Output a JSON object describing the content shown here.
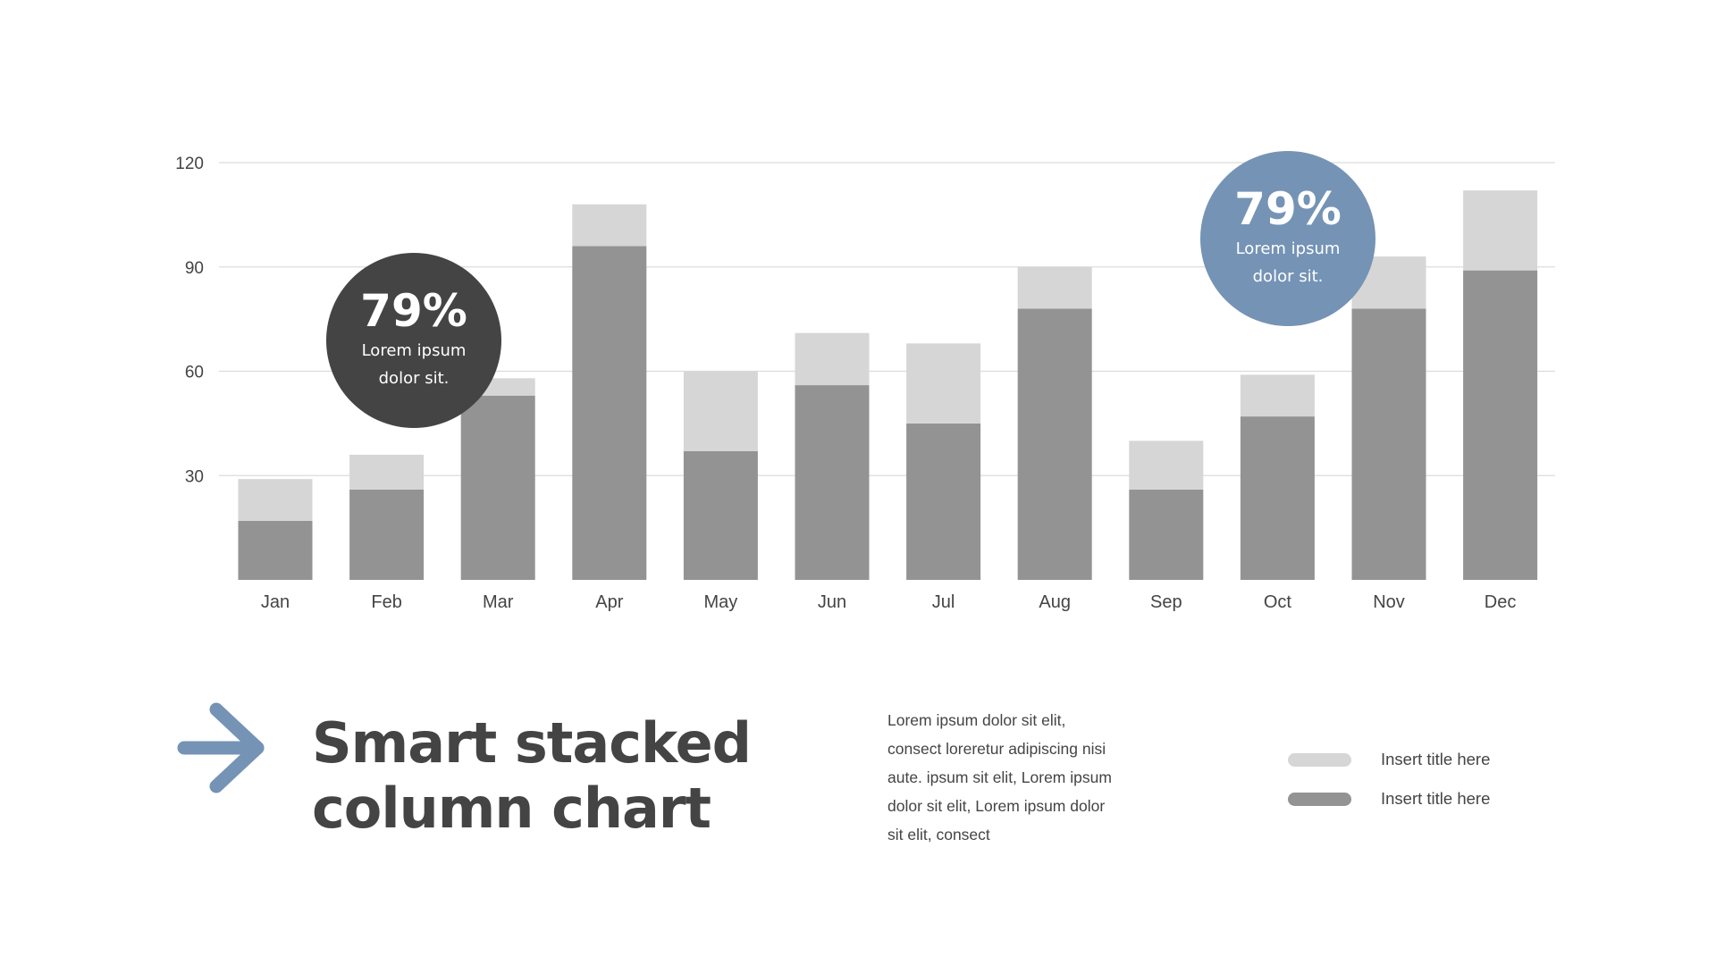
{
  "chart_data": {
    "type": "bar",
    "stacked": true,
    "title": "",
    "xlabel": "",
    "ylabel": "",
    "ylim": [
      0,
      120
    ],
    "yticks": [
      30,
      60,
      90,
      120
    ],
    "grid": true,
    "legend_placement": "bottom-right",
    "categories": [
      "Jan",
      "Feb",
      "Mar",
      "Apr",
      "May",
      "Jun",
      "Jul",
      "Aug",
      "Sep",
      "Oct",
      "Nov",
      "Dec"
    ],
    "series": [
      {
        "name": "Insert title here",
        "color": "#939393",
        "values": [
          17,
          26,
          53,
          96,
          37,
          56,
          45,
          78,
          26,
          47,
          78,
          89
        ]
      },
      {
        "name": "Insert title here",
        "color": "#d6d6d6",
        "values": [
          12,
          10,
          5,
          12,
          23,
          15,
          23,
          12,
          14,
          12,
          15,
          23
        ]
      }
    ]
  },
  "callouts": [
    {
      "value": "79%",
      "line1": "Lorem ipsum",
      "line2": "dolor sit.",
      "color": "#444444"
    },
    {
      "value": "79%",
      "line1": "Lorem ipsum",
      "line2": "dolor sit.",
      "color": "#7593b5"
    }
  ],
  "footer": {
    "arrow_icon": "arrow-right-icon",
    "arrow_color": "#7593b5",
    "title_line1": "Smart stacked",
    "title_line2": "column chart",
    "paragraph_lines": [
      "Lorem ipsum dolor sit elit,",
      "consect loreretur adipiscing nisi",
      "aute. ipsum sit elit, Lorem ipsum",
      "dolor sit elit, Lorem ipsum dolor",
      "sit elit, consect"
    ]
  },
  "legend": [
    {
      "label": "Insert title here",
      "color": "#d6d6d6"
    },
    {
      "label": "Insert title here",
      "color": "#939393"
    }
  ]
}
